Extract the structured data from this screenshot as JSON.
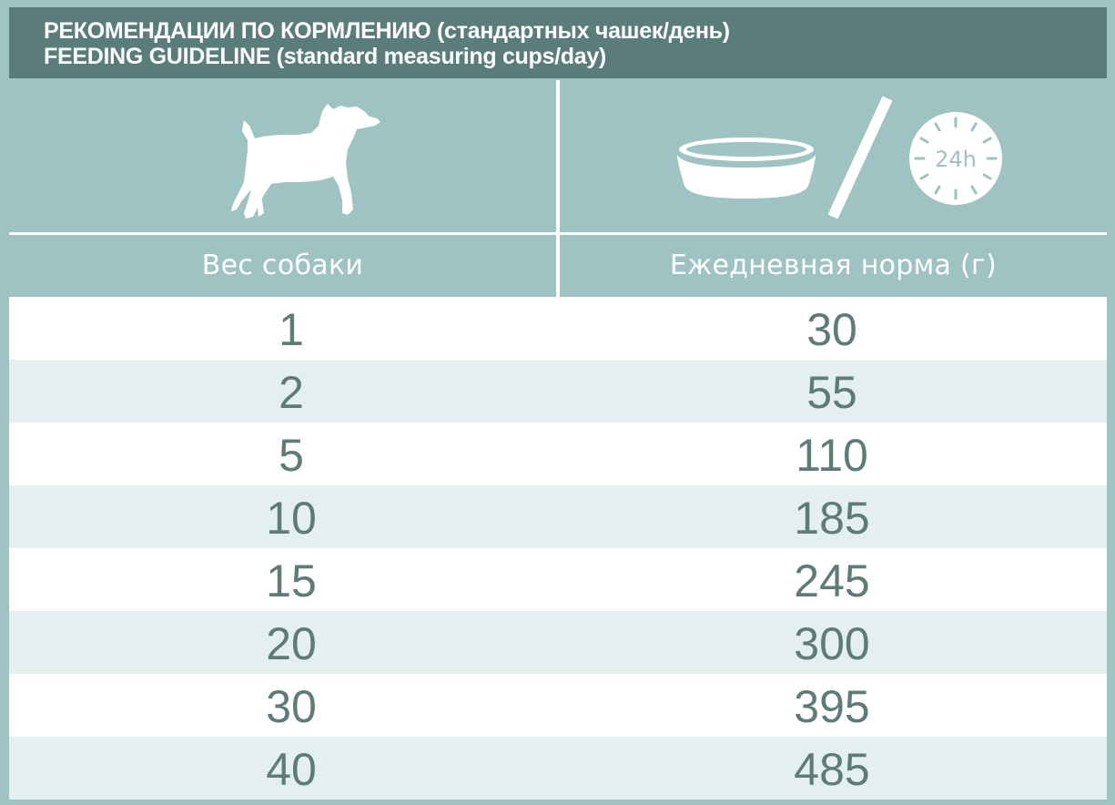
{
  "title": {
    "line_ru": "РЕКОМЕНДАЦИИ ПО КОРМЛЕНИЮ (стандартных чашек/день)",
    "line_en": "FEEDING GUIDELINE (standard measuring cups/day)"
  },
  "icons": {
    "dog": "dog-silhouette-icon",
    "bowl": "food-bowl-icon",
    "slash": "slash-icon",
    "clock": "clock-24h-icon",
    "clock_label": "24h"
  },
  "columns": {
    "weight_label": "Вес собаки",
    "norm_label": "Ежедневная норма (г)"
  },
  "rows": [
    {
      "weight": "1",
      "norm": "30"
    },
    {
      "weight": "2",
      "norm": "55"
    },
    {
      "weight": "5",
      "norm": "110"
    },
    {
      "weight": "10",
      "norm": "185"
    },
    {
      "weight": "15",
      "norm": "245"
    },
    {
      "weight": "20",
      "norm": "300"
    },
    {
      "weight": "30",
      "norm": "395"
    },
    {
      "weight": "40",
      "norm": "485"
    }
  ],
  "colors": {
    "frame": "#9fc2c3",
    "title_bar": "#5a7c7b",
    "row_alt": "#e4f0ef",
    "text": "#5e7b7a"
  }
}
